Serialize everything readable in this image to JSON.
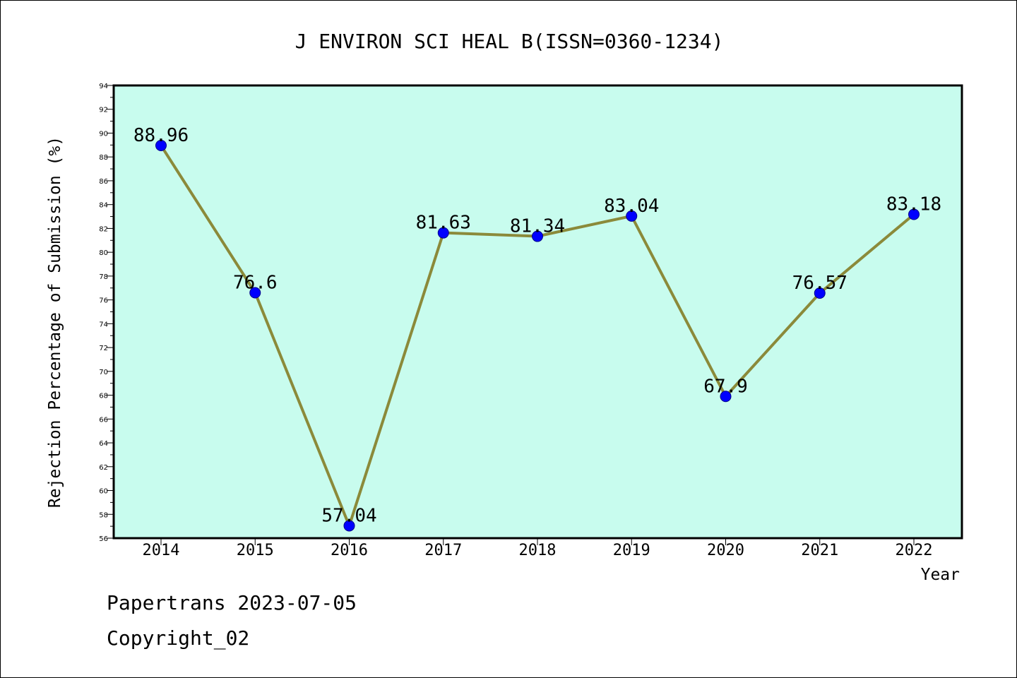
{
  "chart_data": {
    "type": "line",
    "title": "J ENVIRON SCI HEAL B(ISSN=0360-1234)",
    "xlabel": "Year",
    "ylabel": "Rejection Percentage of Submission (%)",
    "categories": [
      "2014",
      "2015",
      "2016",
      "2017",
      "2018",
      "2019",
      "2020",
      "2021",
      "2022"
    ],
    "series": [
      {
        "values": [
          88.96,
          76.6,
          57.04,
          81.63,
          81.34,
          83.04,
          67.9,
          76.57,
          83.18
        ],
        "labels": [
          "88.96",
          "76.6",
          "57.04",
          "81.63",
          "81.34",
          "83.04",
          "67.9",
          "76.57",
          "83.18"
        ]
      }
    ],
    "ylim": [
      56,
      94
    ],
    "yticks": [
      "56",
      "58",
      "60",
      "62",
      "64",
      "66",
      "68",
      "70",
      "72",
      "74",
      "76",
      "78",
      "80",
      "82",
      "84",
      "86",
      "88",
      "90",
      "92",
      "94"
    ],
    "grid": false,
    "legend": "none",
    "colors": {
      "plot_background": "#c8fcee",
      "line": "#8b8a3a",
      "marker": "#0000ff",
      "marker_edge": "#00008b"
    }
  },
  "footer": {
    "date_line": "Papertrans 2023-07-05",
    "copyright_line": "Copyright_02"
  }
}
